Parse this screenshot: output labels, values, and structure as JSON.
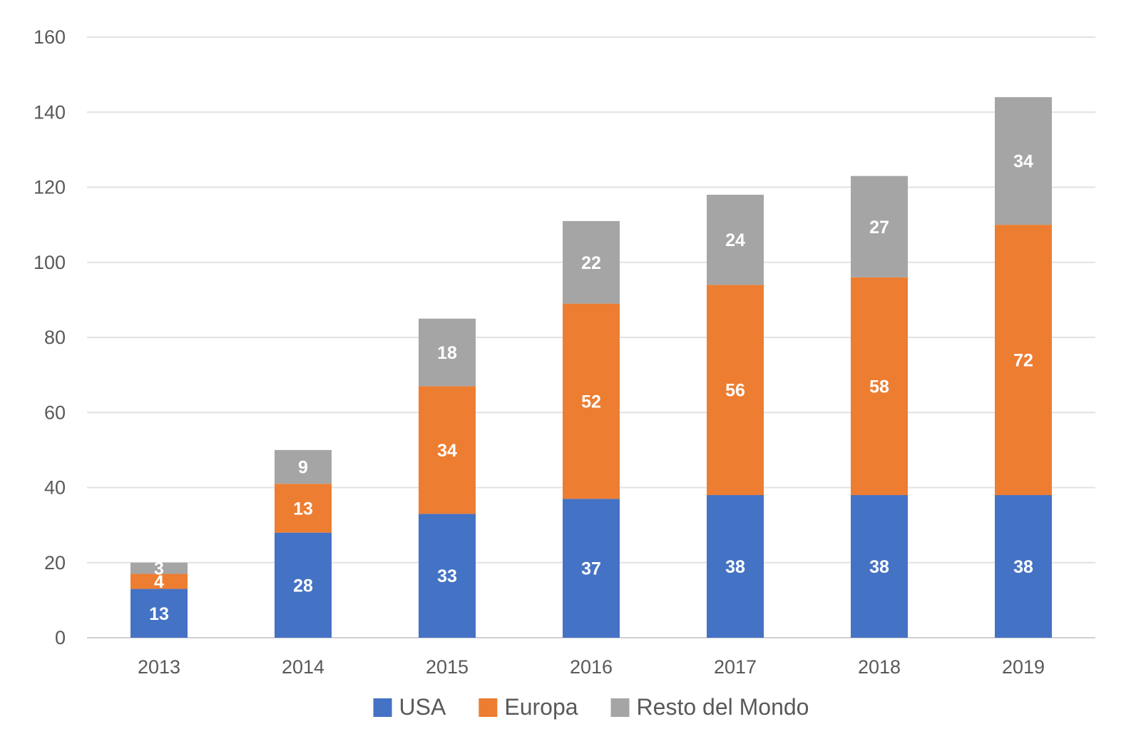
{
  "chart_data": {
    "type": "bar",
    "stacked": true,
    "categories": [
      "2013",
      "2014",
      "2015",
      "2016",
      "2017",
      "2018",
      "2019"
    ],
    "series": [
      {
        "name": "USA",
        "color": "#4472C4",
        "values": [
          13,
          28,
          33,
          37,
          38,
          38,
          38
        ]
      },
      {
        "name": "Europa",
        "color": "#ED7D31",
        "values": [
          4,
          13,
          34,
          52,
          56,
          58,
          72
        ]
      },
      {
        "name": "Resto del Mondo",
        "color": "#A5A5A5",
        "values": [
          3,
          9,
          18,
          22,
          24,
          27,
          34
        ]
      }
    ],
    "ylim": [
      0,
      160
    ],
    "yticks": [
      "0",
      "20",
      "40",
      "60",
      "80",
      "100",
      "120",
      "140",
      "160"
    ],
    "grid": true,
    "legend_position": "bottom",
    "title": "",
    "xlabel": "",
    "ylabel": ""
  }
}
